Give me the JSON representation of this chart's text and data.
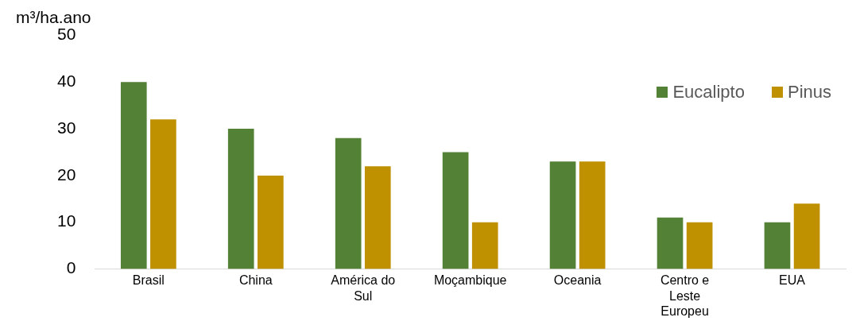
{
  "chart_data": {
    "type": "bar",
    "ylabel": "m³/ha.ano",
    "categories": [
      "Brasil",
      "China",
      "América do Sul",
      "Moçambique",
      "Oceania",
      "Centro e Leste Europeu",
      "EUA"
    ],
    "series": [
      {
        "name": "Eucalipto",
        "color": "#538135",
        "values": [
          40,
          30,
          28,
          25,
          23,
          11,
          10
        ]
      },
      {
        "name": "Pinus",
        "color": "#bf9000",
        "values": [
          32,
          20,
          22,
          10,
          23,
          10,
          14
        ]
      }
    ],
    "ylim": [
      0,
      50
    ],
    "yticks": [
      0,
      10,
      20,
      30,
      40,
      50
    ],
    "grid": false,
    "legend": "top right"
  }
}
